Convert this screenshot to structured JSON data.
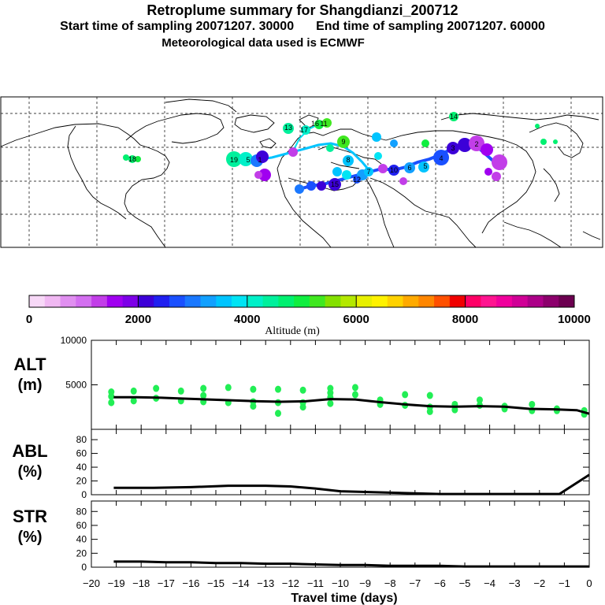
{
  "header": {
    "title": "Retroplume summary for Shangdianzi_200712",
    "start_label": "Start time of sampling 20071207. 30000",
    "end_label": "End time of sampling 20071207. 60000",
    "met_label": "Meteorological data used is ECMWF"
  },
  "colorbar": {
    "ticks": [
      0,
      2000,
      4000,
      6000,
      8000,
      10000
    ],
    "label": "Altitude (m)",
    "colors": [
      "#f7d8f7",
      "#f0b8f2",
      "#e08ff0",
      "#d36ff0",
      "#c23ee8",
      "#a000f0",
      "#7d00e8",
      "#3c00d8",
      "#2020f0",
      "#1a50ff",
      "#1a78ff",
      "#12a0ff",
      "#00c4ff",
      "#00e4f4",
      "#00f0c8",
      "#00f09c",
      "#00f070",
      "#10ee40",
      "#40e820",
      "#84e000",
      "#b4e800",
      "#e8f000",
      "#fff200",
      "#ffd200",
      "#ffaa00",
      "#ff8600",
      "#ff5000",
      "#f00000",
      "#ff0066",
      "#ff1490",
      "#f0009c",
      "#d00096",
      "#ac0088",
      "#8c006c",
      "#6c0050"
    ]
  },
  "map": {
    "plume_labels": [
      "19",
      "5",
      "1",
      "13",
      "16",
      "17",
      "11",
      "9",
      "8",
      "7",
      "6",
      "5",
      "4",
      "3",
      "2",
      "10",
      "12",
      "14",
      "18",
      "15"
    ]
  },
  "chart_data": [
    {
      "type": "line",
      "name": "ALT",
      "ylabel": "ALT",
      "yunit": "(m)",
      "ylim": [
        0,
        10000
      ],
      "yticks": [
        5000,
        10000
      ],
      "x": [
        -19.1,
        -18.2,
        -17.2,
        -16.3,
        -15.3,
        -14.3,
        -13.3,
        -12.4,
        -11.4,
        -10.4,
        -9.4,
        -8.4,
        -7.4,
        -6.4,
        -5.4,
        -4.4,
        -3.4,
        -2.4,
        -1.4,
        -0.5,
        0
      ],
      "values": [
        3600,
        3600,
        3550,
        3450,
        3350,
        3250,
        3150,
        3100,
        3150,
        3400,
        3350,
        3050,
        2800,
        2600,
        2550,
        2600,
        2550,
        2300,
        2250,
        2150,
        1750
      ],
      "points": [
        [
          -19.2,
          4200
        ],
        [
          -19.2,
          3700
        ],
        [
          -19.2,
          3000
        ],
        [
          -18.3,
          4300
        ],
        [
          -18.3,
          3200
        ],
        [
          -17.4,
          4600
        ],
        [
          -17.4,
          3500
        ],
        [
          -16.4,
          4300
        ],
        [
          -16.4,
          3200
        ],
        [
          -15.5,
          4600
        ],
        [
          -15.5,
          3800
        ],
        [
          -15.5,
          3100
        ],
        [
          -14.5,
          4700
        ],
        [
          -14.5,
          3000
        ],
        [
          -13.5,
          4500
        ],
        [
          -13.5,
          3100
        ],
        [
          -13.5,
          2600
        ],
        [
          -12.5,
          4500
        ],
        [
          -12.5,
          3000
        ],
        [
          -12.5,
          1800
        ],
        [
          -11.5,
          4400
        ],
        [
          -11.5,
          3000
        ],
        [
          -11.5,
          2500
        ],
        [
          -10.4,
          4600
        ],
        [
          -10.4,
          4100
        ],
        [
          -10.4,
          3600
        ],
        [
          -10.4,
          2900
        ],
        [
          -9.4,
          4700
        ],
        [
          -9.4,
          3900
        ],
        [
          -8.4,
          3300
        ],
        [
          -8.4,
          2800
        ],
        [
          -7.4,
          3900
        ],
        [
          -7.4,
          2700
        ],
        [
          -6.4,
          3800
        ],
        [
          -6.4,
          2500
        ],
        [
          -6.4,
          2000
        ],
        [
          -5.4,
          2800
        ],
        [
          -5.4,
          2200
        ],
        [
          -4.4,
          3300
        ],
        [
          -4.4,
          2700
        ],
        [
          -3.4,
          2600
        ],
        [
          -3.4,
          2300
        ],
        [
          -2.3,
          2800
        ],
        [
          -2.3,
          2100
        ],
        [
          -1.3,
          2300
        ],
        [
          -1.3,
          2100
        ],
        [
          -0.2,
          2100
        ],
        [
          -0.2,
          1700
        ]
      ]
    },
    {
      "type": "line",
      "name": "ABL",
      "ylabel": "ABL",
      "yunit": "(%)",
      "ylim": [
        0,
        95
      ],
      "yticks": [
        0,
        20,
        40,
        60,
        80
      ],
      "x": [
        -19.1,
        -17.5,
        -16,
        -14.5,
        -13,
        -12,
        -11,
        -10,
        -9,
        -8,
        -7,
        -6,
        -5,
        -4,
        -3,
        -2,
        -1.2,
        0
      ],
      "values": [
        10,
        10,
        11,
        13,
        13,
        12,
        9,
        5,
        4,
        3,
        2,
        1,
        1,
        1,
        1,
        1,
        1,
        29
      ]
    },
    {
      "type": "line",
      "name": "STR",
      "ylabel": "STR",
      "yunit": "(%)",
      "ylim": [
        0,
        95
      ],
      "yticks": [
        0,
        20,
        40,
        60,
        80
      ],
      "x": [
        -19.1,
        -18,
        -17,
        -16,
        -15,
        -14,
        -13,
        -12,
        -11,
        -10,
        -9,
        -8,
        -7,
        -6,
        -5,
        -4,
        -3,
        -2,
        -1,
        0
      ],
      "values": [
        8,
        8,
        7,
        7,
        6,
        6,
        5,
        5,
        4,
        3,
        3,
        2,
        2,
        2,
        1,
        1,
        1,
        1,
        1,
        1
      ]
    }
  ],
  "xaxis": {
    "label": "Travel time (days)",
    "ticks": [
      -20,
      -19,
      -18,
      -17,
      -16,
      -15,
      -14,
      -13,
      -12,
      -11,
      -10,
      -9,
      -8,
      -7,
      -6,
      -5,
      -4,
      -3,
      -2,
      -1,
      0
    ],
    "tick_labels": [
      "−20",
      "−19",
      "−18",
      "−17",
      "−16",
      "−15",
      "−14",
      "−13",
      "−12",
      "−11",
      "−10",
      "−9",
      "−8",
      "−7",
      "−6",
      "−5",
      "−4",
      "−3",
      "−2",
      "−1",
      "0"
    ],
    "range": [
      -20,
      0
    ]
  }
}
